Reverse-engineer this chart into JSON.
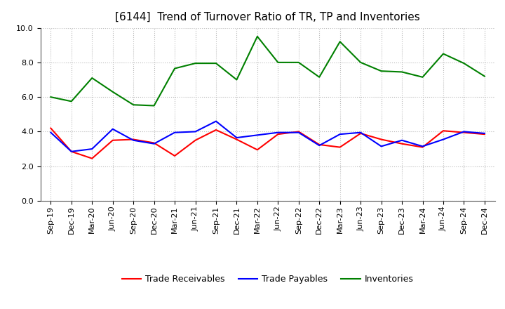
{
  "title": "[6144]  Trend of Turnover Ratio of TR, TP and Inventories",
  "x_labels": [
    "Sep-19",
    "Dec-19",
    "Mar-20",
    "Jun-20",
    "Sep-20",
    "Dec-20",
    "Mar-21",
    "Jun-21",
    "Sep-21",
    "Dec-21",
    "Mar-22",
    "Jun-22",
    "Sep-22",
    "Dec-22",
    "Mar-23",
    "Jun-23",
    "Sep-23",
    "Dec-23",
    "Mar-24",
    "Jun-24",
    "Sep-24",
    "Dec-24"
  ],
  "trade_receivables": [
    4.2,
    2.85,
    2.45,
    3.5,
    3.55,
    3.35,
    2.6,
    3.5,
    4.1,
    3.55,
    2.95,
    3.85,
    4.0,
    3.25,
    3.1,
    3.9,
    3.55,
    3.3,
    3.1,
    4.05,
    3.95,
    3.85
  ],
  "trade_payables": [
    3.95,
    2.85,
    3.0,
    4.15,
    3.5,
    3.3,
    3.95,
    4.0,
    4.6,
    3.65,
    3.8,
    3.95,
    3.95,
    3.2,
    3.85,
    3.95,
    3.15,
    3.5,
    3.15,
    3.55,
    4.0,
    3.9
  ],
  "inventories": [
    6.0,
    5.75,
    7.1,
    6.3,
    5.55,
    5.5,
    7.65,
    7.95,
    7.95,
    7.0,
    9.5,
    8.0,
    8.0,
    7.15,
    9.2,
    8.0,
    7.5,
    7.45,
    7.15,
    8.5,
    7.95,
    7.2
  ],
  "ylim": [
    0,
    10.0
  ],
  "yticks": [
    0.0,
    2.0,
    4.0,
    6.0,
    8.0,
    10.0
  ],
  "color_tr": "#ff0000",
  "color_tp": "#0000ff",
  "color_inv": "#008000",
  "legend_labels": [
    "Trade Receivables",
    "Trade Payables",
    "Inventories"
  ],
  "title_fontsize": 11,
  "tick_fontsize": 8,
  "legend_fontsize": 9,
  "background_color": "#ffffff",
  "grid_color": "#aaaaaa",
  "line_width": 1.5
}
